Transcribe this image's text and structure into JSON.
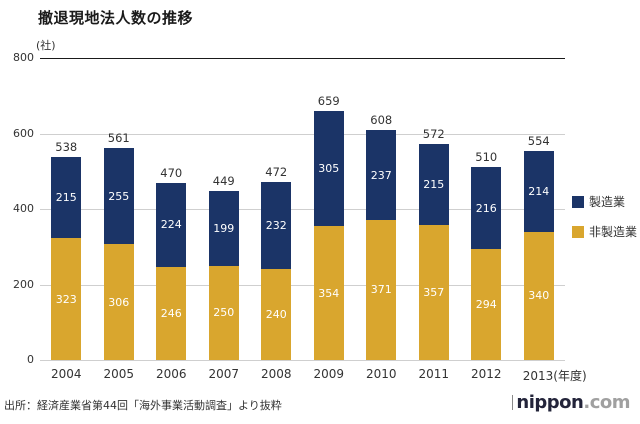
{
  "header": {
    "title": "撤退現地法人数の推移"
  },
  "footer": {
    "source": "出所：経済産業省第44回「海外事業活動調査」より抜粋",
    "brand": {
      "name": "nippon",
      "tld": ".com"
    }
  },
  "chart_data": {
    "type": "bar",
    "stacked": true,
    "title": "撤退現地法人数の推移",
    "unit_label": "(社)",
    "categories": [
      "2004",
      "2005",
      "2006",
      "2007",
      "2008",
      "2009",
      "2010",
      "2011",
      "2012",
      "2013"
    ],
    "x_axis_suffix": "(年度)",
    "series": [
      {
        "name": "非製造業",
        "color": "#D9A62E",
        "values": [
          323,
          306,
          246,
          250,
          240,
          354,
          371,
          357,
          294,
          340
        ]
      },
      {
        "name": "製造業",
        "color": "#1B3467",
        "values": [
          215,
          255,
          224,
          199,
          232,
          305,
          237,
          215,
          216,
          214
        ]
      }
    ],
    "totals": [
      538,
      561,
      470,
      449,
      472,
      659,
      608,
      572,
      510,
      554
    ],
    "ylim": [
      0,
      800
    ],
    "yticks": [
      0,
      200,
      400,
      600,
      800
    ],
    "legend_position": "right",
    "legend_order_series_indexes": [
      1,
      0
    ],
    "grid": true,
    "colors": {
      "grid": "#cfcfcf",
      "top_rule": "#1a1a1a",
      "value_label": "#ffffff",
      "total_label": "#333333"
    }
  }
}
